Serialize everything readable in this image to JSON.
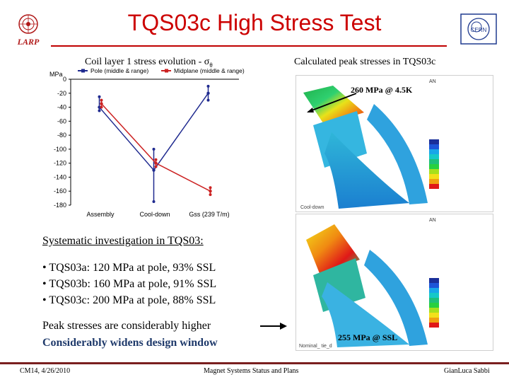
{
  "title": "TQS03c High Stress Test",
  "logos": {
    "left_text": "LARP",
    "right_text": "CERN"
  },
  "left_panel": {
    "subtitle_prefix": "Coil layer 1 stress evolution - ",
    "subtitle_symbol": "σ",
    "subtitle_subscript": "θ"
  },
  "chart_data": {
    "type": "line",
    "y_unit_label": "MPa",
    "categories": [
      "Assembly",
      "Cool-down",
      "Gss (239 T/m)"
    ],
    "ylim": [
      -180,
      0
    ],
    "yticks": [
      0,
      -20,
      -40,
      -60,
      -80,
      -100,
      -120,
      -140,
      -160,
      -180
    ],
    "series": [
      {
        "name": "Pole (middle & range)",
        "color": "#1f2a8f",
        "values": [
          -40,
          -130,
          -20
        ],
        "ranges": [
          [
            -45,
            -25
          ],
          [
            -175,
            -100
          ],
          [
            -30,
            -10
          ]
        ]
      },
      {
        "name": "Midplane (middle & range)",
        "color": "#cc2222",
        "values": [
          -35,
          -120,
          -160
        ],
        "ranges": [
          [
            -40,
            -30
          ],
          [
            -125,
            -115
          ],
          [
            -165,
            -155
          ]
        ]
      }
    ]
  },
  "right_panel": {
    "subtitle": "Calculated peak stresses in TQS03c",
    "callout_top": "260 MPa @ 4.5K",
    "callout_bottom": "255 MPa @ SSL",
    "fea_header": "AN",
    "fea_top_caption": "Cool-down",
    "fea_bottom_caption": "Nominal_ tie_d"
  },
  "body": {
    "systematic_heading": "Systematic investigation in TQS03:",
    "bullets": [
      "• TQS03a: 120 MPa at pole, 93% SSL",
      "• TQS03b: 160 MPa at pole, 91% SSL",
      "• TQS03c: 200 MPa at pole, 88% SSL"
    ],
    "peak_line": "Peak stresses are considerably higher",
    "widens_line": "Considerably widens design window"
  },
  "footer": {
    "left": "CM14, 4/26/2010",
    "center": "Magnet Systems Status and Plans",
    "right": "GianLuca Sabbi"
  },
  "colors": {
    "title": "#cc0000",
    "footer_rule": "#7a1f1f",
    "widens_text": "#1f3a6b"
  }
}
